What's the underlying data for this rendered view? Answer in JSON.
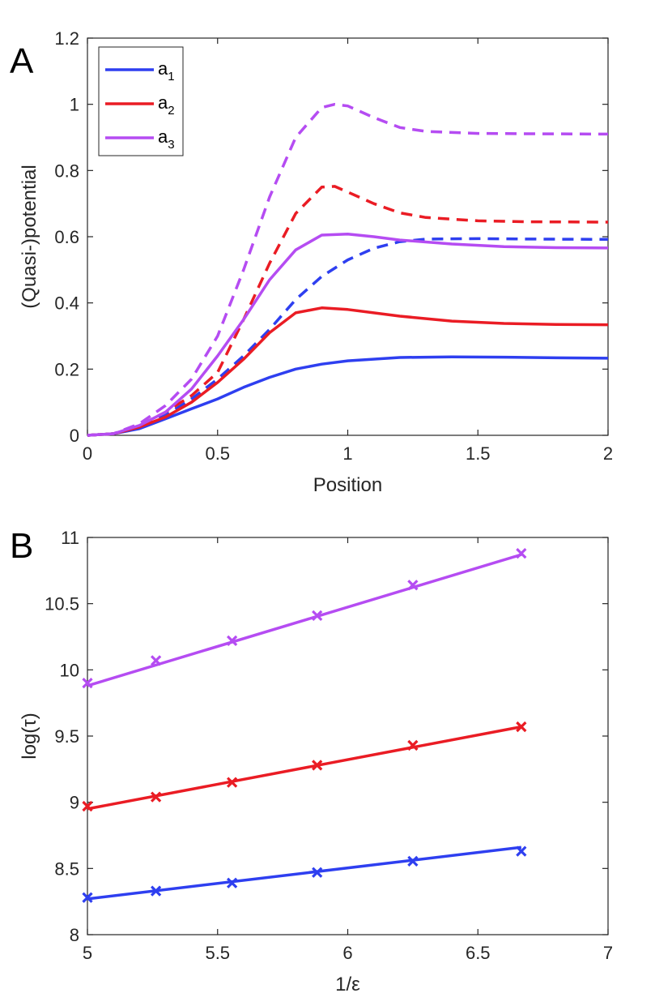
{
  "colors": {
    "a1": "#2e3ff0",
    "a2": "#ea1c24",
    "a3": "#b54cf2",
    "axis": "#262626"
  },
  "chart_data": [
    {
      "panel": "A",
      "type": "line",
      "xlabel": "Position",
      "ylabel": "(Quasi-)potential",
      "xlim": [
        0,
        2
      ],
      "ylim": [
        0,
        1.2
      ],
      "xticks": [
        "0",
        "0.5",
        "1",
        "1.5",
        "2"
      ],
      "yticks": [
        "0",
        "0.2",
        "0.4",
        "0.6",
        "0.8",
        "1",
        "1.2"
      ],
      "legend": {
        "position": "top-left",
        "entries": [
          {
            "base": "a",
            "sub": "1"
          },
          {
            "base": "a",
            "sub": "2"
          },
          {
            "base": "a",
            "sub": "3"
          }
        ]
      },
      "series": [
        {
          "name": "a1",
          "style": "solid",
          "x": [
            0,
            0.1,
            0.2,
            0.3,
            0.4,
            0.5,
            0.6,
            0.7,
            0.8,
            0.9,
            1.0,
            1.2,
            1.4,
            1.6,
            1.8,
            2.0
          ],
          "y": [
            0,
            0.005,
            0.02,
            0.05,
            0.08,
            0.11,
            0.145,
            0.175,
            0.2,
            0.215,
            0.225,
            0.235,
            0.237,
            0.236,
            0.234,
            0.233
          ]
        },
        {
          "name": "a1",
          "style": "dashed",
          "x": [
            0,
            0.1,
            0.2,
            0.3,
            0.4,
            0.5,
            0.6,
            0.7,
            0.8,
            0.9,
            1.0,
            1.1,
            1.2,
            1.3,
            1.5,
            1.7,
            2.0
          ],
          "y": [
            0,
            0.005,
            0.025,
            0.06,
            0.11,
            0.17,
            0.24,
            0.32,
            0.41,
            0.48,
            0.53,
            0.565,
            0.585,
            0.593,
            0.594,
            0.593,
            0.592
          ]
        },
        {
          "name": "a2",
          "style": "solid",
          "x": [
            0,
            0.1,
            0.2,
            0.3,
            0.4,
            0.5,
            0.6,
            0.7,
            0.8,
            0.9,
            1.0,
            1.2,
            1.4,
            1.6,
            1.8,
            2.0
          ],
          "y": [
            0,
            0.005,
            0.025,
            0.055,
            0.1,
            0.16,
            0.23,
            0.31,
            0.37,
            0.385,
            0.38,
            0.36,
            0.345,
            0.338,
            0.335,
            0.334
          ]
        },
        {
          "name": "a2",
          "style": "dashed",
          "x": [
            0,
            0.1,
            0.2,
            0.3,
            0.4,
            0.5,
            0.6,
            0.7,
            0.8,
            0.9,
            0.95,
            1.0,
            1.1,
            1.2,
            1.3,
            1.5,
            1.7,
            2.0
          ],
          "y": [
            0,
            0.005,
            0.03,
            0.07,
            0.12,
            0.19,
            0.35,
            0.52,
            0.67,
            0.75,
            0.752,
            0.735,
            0.7,
            0.672,
            0.658,
            0.648,
            0.645,
            0.644
          ]
        },
        {
          "name": "a3",
          "style": "solid",
          "x": [
            0,
            0.1,
            0.2,
            0.3,
            0.4,
            0.5,
            0.6,
            0.7,
            0.8,
            0.9,
            1.0,
            1.1,
            1.2,
            1.4,
            1.6,
            1.8,
            2.0
          ],
          "y": [
            0,
            0.005,
            0.03,
            0.07,
            0.14,
            0.24,
            0.35,
            0.47,
            0.56,
            0.605,
            0.608,
            0.6,
            0.59,
            0.578,
            0.57,
            0.567,
            0.566
          ]
        },
        {
          "name": "a3",
          "style": "dashed",
          "x": [
            0,
            0.1,
            0.2,
            0.3,
            0.4,
            0.5,
            0.6,
            0.7,
            0.8,
            0.9,
            0.95,
            1.0,
            1.1,
            1.2,
            1.3,
            1.5,
            1.7,
            2.0
          ],
          "y": [
            0,
            0.005,
            0.035,
            0.09,
            0.17,
            0.3,
            0.5,
            0.72,
            0.9,
            0.99,
            1.0,
            0.995,
            0.96,
            0.93,
            0.918,
            0.912,
            0.911,
            0.91
          ]
        }
      ]
    },
    {
      "panel": "B",
      "type": "scatter",
      "xlabel": "1/ε",
      "ylabel": "log(τ)",
      "xlim": [
        5,
        7
      ],
      "ylim": [
        8,
        11
      ],
      "xticks": [
        "5",
        "5.5",
        "6",
        "6.5",
        "7"
      ],
      "yticks": [
        "8",
        "8.5",
        "9",
        "9.5",
        "10",
        "10.5",
        "11"
      ],
      "series": [
        {
          "name": "a1",
          "points": {
            "x": [
              5,
              5.2632,
              5.5556,
              5.8824,
              6.25,
              6.6667
            ],
            "y": [
              8.28,
              8.33,
              8.39,
              8.47,
              8.555,
              8.63
            ]
          },
          "fit": {
            "x": [
              5,
              6.6667
            ],
            "y": [
              8.27,
              8.66
            ]
          }
        },
        {
          "name": "a2",
          "points": {
            "x": [
              5,
              5.2632,
              5.5556,
              5.8824,
              6.25,
              6.6667
            ],
            "y": [
              8.97,
              9.04,
              9.15,
              9.28,
              9.43,
              9.57
            ]
          },
          "fit": {
            "x": [
              5,
              6.6667
            ],
            "y": [
              8.95,
              9.57
            ]
          }
        },
        {
          "name": "a3",
          "points": {
            "x": [
              5,
              5.2632,
              5.5556,
              5.8824,
              6.25,
              6.6667
            ],
            "y": [
              9.9,
              10.07,
              10.22,
              10.41,
              10.64,
              10.88
            ]
          },
          "fit": {
            "x": [
              5,
              6.6667
            ],
            "y": [
              9.88,
              10.87
            ]
          }
        }
      ]
    }
  ]
}
